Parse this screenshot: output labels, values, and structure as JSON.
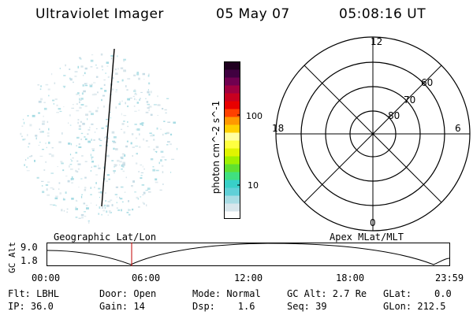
{
  "header": {
    "instrument": "Ultraviolet Imager",
    "date": "05 May 07",
    "time": "05:08:16 UT"
  },
  "colorbar": {
    "label": "photon cm^-2 s^-1",
    "ticks": [
      "100",
      "10"
    ],
    "colors": [
      "#ffffff",
      "#d8e6ec",
      "#a8dce4",
      "#60d0d8",
      "#38d0c8",
      "#40e080",
      "#60e030",
      "#a0f000",
      "#e0f400",
      "#ffff40",
      "#ffffa0",
      "#ffd000",
      "#ff9800",
      "#ff4000",
      "#e80000",
      "#c80020",
      "#a00040",
      "#700050",
      "#400040",
      "#200020"
    ]
  },
  "polar_plot": {
    "mlt_labels": {
      "top": "12",
      "bottom": "0",
      "left": "18",
      "right": "6"
    },
    "lat_labels": [
      "60",
      "70",
      "80"
    ]
  },
  "orbit_panel": {
    "left_label": "Geographic Lat/Lon",
    "right_label": "Apex MLat/MLT",
    "ylabel": "GC Alt",
    "y_ticks": [
      "9.0",
      "1.8"
    ],
    "x_ticks": [
      "00:00",
      "06:00",
      "12:00",
      "18:00",
      "23:59"
    ],
    "marker_color": "#c00000"
  },
  "status": {
    "flt": "Flt: LBHL",
    "ip": "IP: 36.0",
    "door": "Door: Open",
    "gain": "Gain: 14",
    "mode": "Mode: Normal",
    "dsp": "Dsp:    1.6",
    "gc_alt": "GC Alt: 2.7 Re",
    "seq": "Seq: 39",
    "glat": "GLat:    0.0",
    "glon": "GLon: 212.5"
  }
}
